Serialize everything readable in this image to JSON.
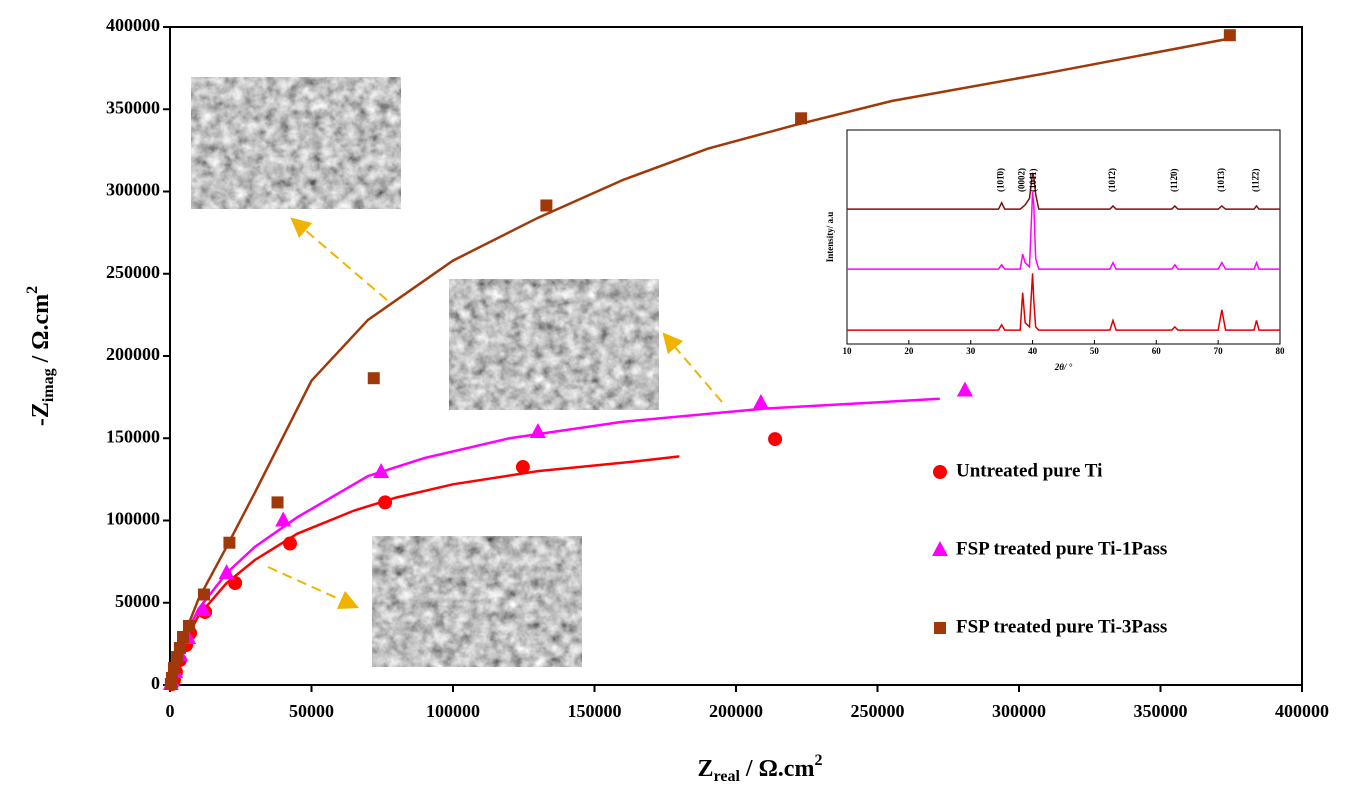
{
  "chart_data": [
    {
      "type": "scatter",
      "x_label": {
        "main": "Z",
        "sub": "real",
        "unit": " / Ω.cm",
        "sup": "2"
      },
      "y_label": {
        "main": "-Z",
        "sub": "imag",
        "unit": " / Ω.cm",
        "sup": "2"
      },
      "xlim": [
        0,
        400000
      ],
      "ylim": [
        0,
        400000
      ],
      "xticks": [
        0,
        50000,
        100000,
        150000,
        200000,
        250000,
        300000,
        350000,
        400000
      ],
      "yticks": [
        0,
        50000,
        100000,
        150000,
        200000,
        250000,
        300000,
        350000,
        400000
      ],
      "legend": "right",
      "series": [
        {
          "name": "Untreated pure Ti",
          "color": "#ff0000",
          "marker": "circle",
          "x": [
            700,
            1400,
            2100,
            3500,
            5700,
            7100,
            12400,
            23000,
            42400,
            76000,
            124700,
            213800
          ],
          "values": [
            600,
            3000,
            7900,
            15200,
            24300,
            31600,
            44400,
            62000,
            86000,
            111000,
            132500,
            149500
          ],
          "fit": {
            "x": [
              0,
              5000,
              10000,
              20000,
              30000,
              45000,
              65000,
              80000,
              100000,
              130000,
              165000,
              180000
            ],
            "values": [
              0,
              25000,
              42000,
              62000,
              76000,
              92000,
              106000,
              114000,
              122000,
              130000,
              136000,
              139000
            ]
          }
        },
        {
          "name": "FSP treated pure Ti-1Pass",
          "color": "#ff00ff",
          "marker": "triangle",
          "x": [
            300,
            700,
            1800,
            3500,
            6400,
            11700,
            20000,
            40000,
            74600,
            130000,
            208800,
            280900
          ],
          "values": [
            600,
            3000,
            7900,
            18200,
            28600,
            45600,
            68000,
            100000,
            129500,
            153800,
            171400,
            179000
          ],
          "fit": {
            "x": [
              0,
              5000,
              10000,
              20000,
              30000,
              45000,
              70000,
              90000,
              120000,
              160000,
              210000,
              272000
            ],
            "values": [
              0,
              28000,
              46000,
              68000,
              84000,
              102000,
              127000,
              138000,
              150000,
              160000,
              168000,
              174000
            ]
          }
        },
        {
          "name": "FSP treated pure Ti-3Pass",
          "color": "#a0380a",
          "marker": "square",
          "x": [
            300,
            700,
            1400,
            2500,
            3500,
            4600,
            6700,
            12000,
            21000,
            38000,
            72000,
            133000,
            223000,
            374500
          ],
          "values": [
            600,
            4300,
            10300,
            17000,
            22500,
            29200,
            35900,
            55000,
            86500,
            111000,
            186500,
            291500,
            344500,
            395000
          ],
          "fit": {
            "x": [
              0,
              5000,
              10000,
              20000,
              30000,
              50000,
              70000,
              100000,
              130000,
              160000,
              190000,
              220000,
              255000,
              310000,
              374500
            ],
            "values": [
              0,
              30000,
              52000,
              84000,
              117000,
              185000,
              222000,
              258000,
              284000,
              307000,
              326000,
              340000,
              355000,
              372000,
              393000
            ]
          }
        }
      ]
    },
    {
      "type": "line",
      "x_label": "2θ/ °",
      "y_label": "Intensity/ a.u",
      "xlim": [
        10,
        80
      ],
      "ylim": [
        0,
        100
      ],
      "xticks": [
        10,
        20,
        30,
        40,
        50,
        60,
        70,
        80
      ],
      "x": [
        10,
        34.5,
        35,
        35.5,
        38,
        38.4,
        38.8,
        39.5,
        40,
        40.2,
        40.5,
        41,
        52.5,
        53,
        53.5,
        62.5,
        63,
        63.5,
        70,
        70.6,
        71.2,
        75.8,
        76.2,
        76.6,
        80
      ],
      "series": [
        {
          "color": "#7b1010",
          "values": [
            63,
            63,
            66,
            63,
            63,
            64,
            65,
            68,
            80,
            78,
            70,
            63,
            63,
            64.5,
            63,
            63,
            64.5,
            63,
            63,
            64.5,
            63,
            63,
            64.5,
            63,
            63
          ]
        },
        {
          "color": "#ff00ff",
          "values": [
            35,
            35,
            37,
            35,
            35,
            42,
            38,
            36,
            71,
            65,
            40,
            35,
            35,
            38,
            35,
            35,
            37,
            35,
            35,
            38,
            35,
            35,
            38,
            35,
            35
          ]
        },
        {
          "color": "#e00000",
          "values": [
            6.5,
            6.5,
            9,
            6.5,
            6.5,
            24,
            10,
            8,
            33,
            20,
            8,
            6.5,
            6.5,
            11,
            6.5,
            6.5,
            8,
            6.5,
            6.5,
            16,
            6.5,
            6.5,
            11,
            6.5,
            6.5
          ]
        }
      ],
      "annotations": [
        {
          "text": "(101̄0)",
          "x": 35
        },
        {
          "text": "(0002)",
          "x": 38.4
        },
        {
          "text": "(101̄1)",
          "x": 40.2
        },
        {
          "text": "(101̄2)",
          "x": 53
        },
        {
          "text": "(112̄0)",
          "x": 63
        },
        {
          "text": "(101̄3)",
          "x": 70.6
        },
        {
          "text": "(112̄2)",
          "x": 76.2
        }
      ]
    }
  ]
}
